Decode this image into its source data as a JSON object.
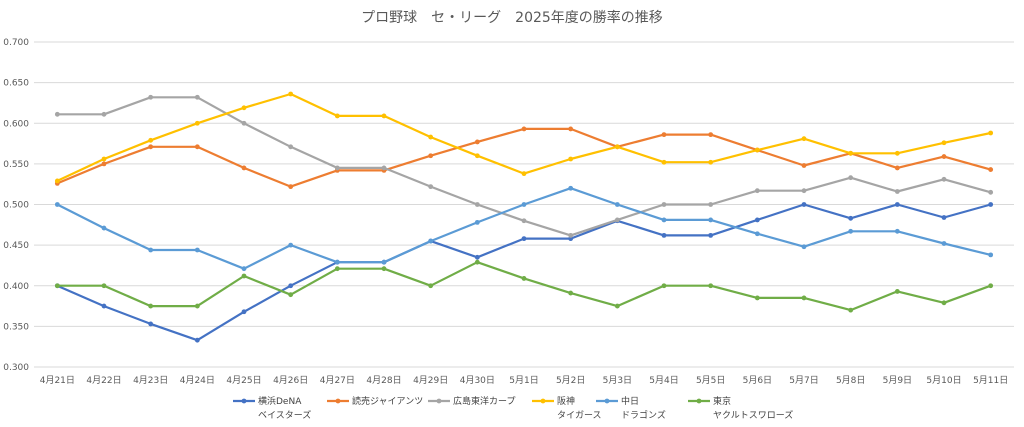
{
  "chart_data": {
    "type": "line",
    "title": "プロ野球　セ・リーグ　2025年度の勝率の推移",
    "xlabel": "",
    "ylabel": "",
    "categories": [
      "4月21日",
      "4月22日",
      "4月23日",
      "4月24日",
      "4月25日",
      "4月26日",
      "4月27日",
      "4月28日",
      "4月29日",
      "4月30日",
      "5月1日",
      "5月2日",
      "5月3日",
      "5月4日",
      "5月5日",
      "5月6日",
      "5月7日",
      "5月8日",
      "5月9日",
      "5月10日",
      "5月11日"
    ],
    "ylim": [
      0.3,
      0.7
    ],
    "yticks": [
      "0.300",
      "0.350",
      "0.400",
      "0.450",
      "0.500",
      "0.550",
      "0.600",
      "0.650",
      "0.700"
    ],
    "grid": true,
    "legend_position": "bottom",
    "series": [
      {
        "name": "横浜DeNA",
        "name_line2": "ベイスターズ",
        "color": "#4472c4",
        "values": [
          0.4,
          0.375,
          0.353,
          0.333,
          0.368,
          0.4,
          0.429,
          0.429,
          0.455,
          0.435,
          0.458,
          0.458,
          0.48,
          0.462,
          0.462,
          0.481,
          0.5,
          0.483,
          0.5,
          0.484,
          0.5
        ]
      },
      {
        "name": "読売ジャイアンツ",
        "name_line2": "",
        "color": "#ed7d31",
        "values": [
          0.526,
          0.55,
          0.571,
          0.571,
          0.545,
          0.522,
          0.542,
          0.542,
          0.56,
          0.577,
          0.593,
          0.593,
          0.571,
          0.586,
          0.586,
          0.567,
          0.548,
          0.563,
          0.545,
          0.559,
          0.543
        ]
      },
      {
        "name": "広島東洋カープ",
        "name_line2": "",
        "color": "#a5a5a5",
        "values": [
          0.611,
          0.611,
          0.632,
          0.632,
          0.6,
          0.571,
          0.545,
          0.545,
          0.522,
          0.5,
          0.48,
          0.462,
          0.481,
          0.5,
          0.5,
          0.517,
          0.517,
          0.533,
          0.516,
          0.531,
          0.515
        ]
      },
      {
        "name": "阪神",
        "name_line2": "タイガース",
        "color": "#ffc000",
        "values": [
          0.529,
          0.556,
          0.579,
          0.6,
          0.619,
          0.636,
          0.609,
          0.609,
          0.583,
          0.56,
          0.538,
          0.556,
          0.571,
          0.552,
          0.552,
          0.567,
          0.581,
          0.563,
          0.563,
          0.576,
          0.588
        ]
      },
      {
        "name": "中日",
        "name_line2": "ドラゴンズ",
        "color": "#5b9bd5",
        "values": [
          0.5,
          0.471,
          0.444,
          0.444,
          0.421,
          0.45,
          0.429,
          0.429,
          0.455,
          0.478,
          0.5,
          0.52,
          0.5,
          0.481,
          0.481,
          0.464,
          0.448,
          0.467,
          0.467,
          0.452,
          0.438
        ]
      },
      {
        "name": "東京",
        "name_line2": "ヤクルトスワローズ",
        "color": "#70ad47",
        "values": [
          0.4,
          0.4,
          0.375,
          0.375,
          0.412,
          0.389,
          0.421,
          0.421,
          0.4,
          0.429,
          0.409,
          0.391,
          0.375,
          0.4,
          0.4,
          0.385,
          0.385,
          0.37,
          0.393,
          0.379,
          0.4
        ]
      }
    ]
  }
}
